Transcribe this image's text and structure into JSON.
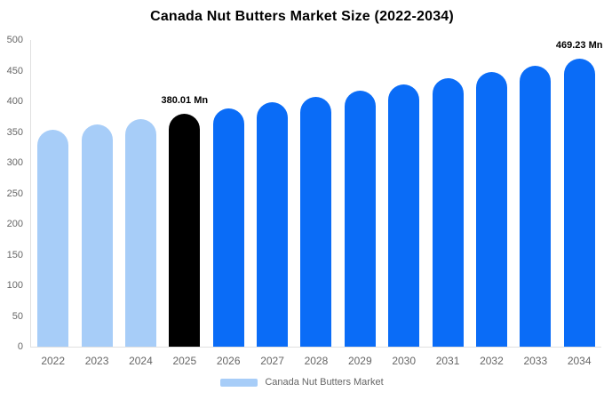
{
  "title": "Canada Nut Butters Market Size (2022-2034)",
  "colors": {
    "historical": "#a7cdf8",
    "highlight": "#000000",
    "forecast": "#0a6cf7",
    "axis_text": "#666666",
    "axis_line": "#e0e0e0",
    "annotation_text": "#000000",
    "background": "#ffffff"
  },
  "legend": {
    "label": "Canada Nut Butters Market",
    "swatch_color": "#a7cdf8"
  },
  "chart_data": {
    "type": "bar",
    "title": "Canada Nut Butters Market Size (2022-2034)",
    "xlabel": "",
    "ylabel": "",
    "unit": "Mn",
    "ylim": [
      0,
      500
    ],
    "yticks": [
      0,
      50,
      100,
      150,
      200,
      250,
      300,
      350,
      400,
      450,
      500
    ],
    "grid": false,
    "legend_position": "bottom",
    "series_name": "Canada Nut Butters Market",
    "categories": [
      "2022",
      "2023",
      "2024",
      "2025",
      "2026",
      "2027",
      "2028",
      "2029",
      "2030",
      "2031",
      "2032",
      "2033",
      "2034"
    ],
    "values": [
      354.2,
      362.6,
      371.2,
      380.01,
      389.0,
      398.3,
      407.7,
      417.4,
      427.3,
      437.4,
      447.8,
      458.4,
      469.23
    ],
    "bar_color_roles": [
      "historical",
      "historical",
      "historical",
      "highlight",
      "forecast",
      "forecast",
      "forecast",
      "forecast",
      "forecast",
      "forecast",
      "forecast",
      "forecast",
      "forecast"
    ],
    "annotations": [
      {
        "category": "2025",
        "text": "380.01 Mn"
      },
      {
        "category": "2034",
        "text": "469.23 Mn"
      }
    ]
  }
}
